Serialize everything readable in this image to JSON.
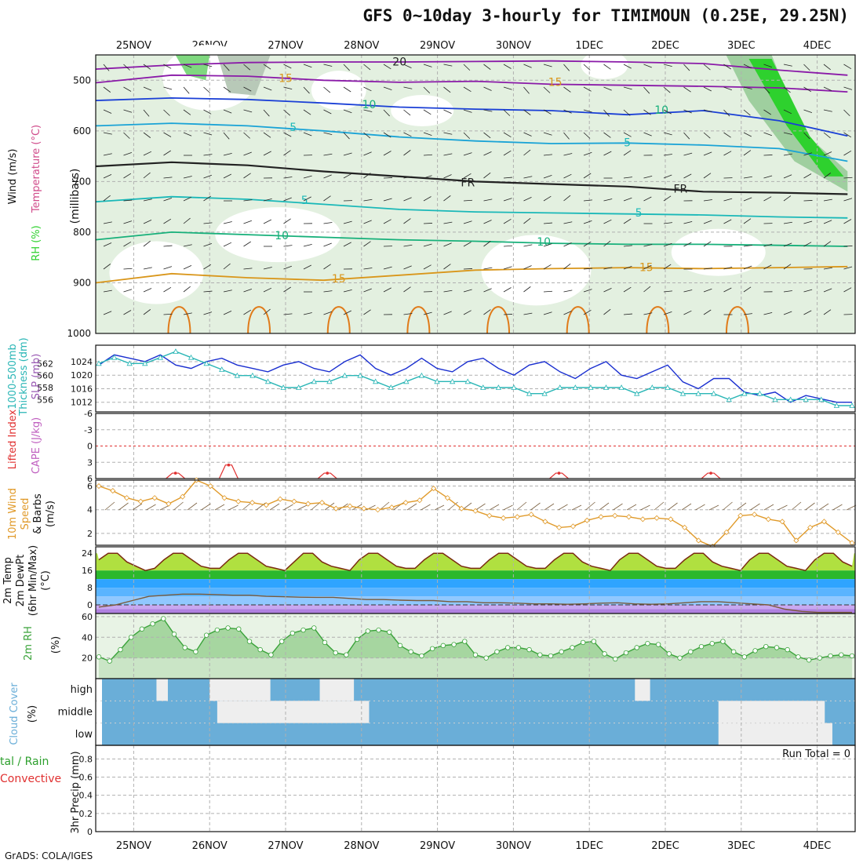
{
  "title": "GFS 0~10day 3-hourly for TIMIMOUN (0.25E, 29.25N)",
  "credit": "GrADS: COLA/IGES",
  "colors": {
    "rh_green": "#2ed12e",
    "grid": "#b0b0b0",
    "temp_purple": "#8a1aa8",
    "temp_blue": "#1a3fd6",
    "temp_cyan": "#1aa3d6",
    "temp_teal": "#1ab8b8",
    "temp_green": "#17b07a",
    "temp_orange": "#d9961a",
    "temp_darkorange": "#e07b1a",
    "slp": "#1a2fd0",
    "thickness": "#2ab6b6",
    "li": "#e03030",
    "wind": "#e09a2a",
    "rh2m": "#3aa33a",
    "cloud": "#6aaed8",
    "convective": "#e03030"
  },
  "chart_data": [
    {
      "type": "line",
      "panel": "upper-air cross section",
      "ylabel": "(millibars)",
      "side_labels": [
        "Wind (m/s)",
        "Temperature (°C)",
        "RH (%)"
      ],
      "date_labels": [
        "25NOV",
        "26NOV",
        "27NOV",
        "28NOV",
        "29NOV",
        "30NOV",
        "1DEC",
        "2DEC",
        "3DEC",
        "4DEC"
      ],
      "yticks": [
        500,
        600,
        700,
        800,
        900,
        1000
      ],
      "ylim": [
        1000,
        450
      ],
      "xlim": [
        0,
        10
      ],
      "x_of_dates": [
        0.5,
        1.5,
        2.5,
        3.5,
        4.5,
        5.5,
        6.5,
        7.5,
        8.5,
        9.5
      ],
      "isotherms": [
        {
          "name": "-20",
          "color": "#8a1aa8",
          "x": [
            0,
            1,
            2,
            3,
            4,
            5,
            6,
            7,
            8,
            9,
            9.9
          ],
          "y": [
            478,
            470,
            465,
            464,
            464,
            463,
            462,
            464,
            467,
            480,
            490
          ]
        },
        {
          "name": "-15",
          "color": "#8a1aa8",
          "x": [
            0,
            1,
            2,
            3,
            4,
            5,
            6,
            7,
            8,
            9,
            9.9
          ],
          "y": [
            505,
            490,
            492,
            500,
            504,
            502,
            508,
            510,
            512,
            515,
            523
          ]
        },
        {
          "name": "-10",
          "color": "#1a3fd6",
          "x": [
            0,
            1,
            2,
            3,
            4,
            5,
            6,
            7,
            8,
            9,
            9.9
          ],
          "y": [
            540,
            535,
            538,
            545,
            553,
            557,
            560,
            568,
            560,
            580,
            610
          ]
        },
        {
          "name": "-5",
          "color": "#1aa3d6",
          "x": [
            0,
            1,
            2,
            3,
            4,
            5,
            6,
            7,
            8,
            9,
            9.9
          ],
          "y": [
            590,
            585,
            590,
            600,
            612,
            620,
            625,
            624,
            628,
            635,
            660
          ]
        },
        {
          "name": "FR",
          "color": "#222222",
          "x": [
            0,
            1,
            2,
            3,
            4,
            5,
            6,
            7,
            8,
            9,
            9.9
          ],
          "y": [
            670,
            662,
            668,
            680,
            690,
            700,
            705,
            710,
            720,
            722,
            725
          ]
        },
        {
          "name": "5",
          "color": "#1ab8b8",
          "x": [
            0,
            1,
            2,
            3,
            4,
            5,
            6,
            7,
            8,
            9,
            9.9
          ],
          "y": [
            740,
            730,
            735,
            745,
            755,
            760,
            762,
            764,
            766,
            770,
            772
          ]
        },
        {
          "name": "10",
          "color": "#17b07a",
          "x": [
            0,
            1,
            2,
            3,
            4,
            5,
            6,
            7,
            8,
            9,
            9.9
          ],
          "y": [
            815,
            800,
            805,
            810,
            815,
            818,
            822,
            824,
            824,
            826,
            828
          ]
        },
        {
          "name": "15",
          "color": "#d9961a",
          "x": [
            0,
            1,
            2,
            3,
            4,
            5,
            6,
            7,
            8,
            9,
            9.9
          ],
          "y": [
            900,
            882,
            890,
            895,
            885,
            875,
            872,
            870,
            872,
            870,
            868
          ]
        }
      ],
      "isotherm_labels": [
        {
          "text": "20",
          "x": 4.0,
          "y": 465
        },
        {
          "text": "15",
          "x": 2.5,
          "y": 497
        },
        {
          "text": "15",
          "x": 6.05,
          "y": 505
        },
        {
          "text": "10",
          "x": 3.6,
          "y": 549
        },
        {
          "text": "10",
          "x": 7.45,
          "y": 560
        },
        {
          "text": "5",
          "x": 2.6,
          "y": 594
        },
        {
          "text": "5",
          "x": 7.0,
          "y": 624
        },
        {
          "text": "FR",
          "x": 4.9,
          "y": 703
        },
        {
          "text": "FR",
          "x": 7.7,
          "y": 716
        },
        {
          "text": "5",
          "x": 2.75,
          "y": 738
        },
        {
          "text": "5",
          "x": 7.15,
          "y": 763
        },
        {
          "text": "10",
          "x": 2.45,
          "y": 808
        },
        {
          "text": "10",
          "x": 5.9,
          "y": 820
        },
        {
          "text": "15",
          "x": 3.2,
          "y": 893
        },
        {
          "text": "15",
          "x": 7.25,
          "y": 871
        }
      ]
    },
    {
      "type": "line",
      "panel": "SLP and thickness",
      "ylabel": "SLP (mb)",
      "ylabel2": "1000-500mb thickness (dm)",
      "yticks_left": [
        556,
        558,
        560,
        562
      ],
      "yticks_right": [
        1012,
        1016,
        1020,
        1024
      ],
      "series": [
        {
          "name": "SLP",
          "values": [
            1023,
            1026,
            1025,
            1024,
            1026,
            1023,
            1022,
            1024,
            1025,
            1023,
            1022,
            1021,
            1023,
            1024,
            1022,
            1021,
            1024,
            1026,
            1022,
            1020,
            1022,
            1025,
            1022,
            1021,
            1024,
            1025,
            1022,
            1020,
            1023,
            1024,
            1021,
            1019,
            1022,
            1024,
            1020,
            1019,
            1021,
            1023,
            1018,
            1016,
            1019,
            1019,
            1015,
            1014,
            1015,
            1012,
            1014,
            1013,
            1012,
            1012
          ]
        },
        {
          "name": "Thickness",
          "values": [
            562,
            563,
            562,
            562,
            563,
            564,
            563,
            562,
            561,
            560,
            560,
            559,
            558,
            558,
            559,
            559,
            560,
            560,
            559,
            558,
            559,
            560,
            559,
            559,
            559,
            558,
            558,
            558,
            557,
            557,
            558,
            558,
            558,
            558,
            558,
            557,
            558,
            558,
            557,
            557,
            557,
            556,
            557,
            557,
            556,
            556,
            556,
            556,
            555,
            555
          ]
        }
      ]
    },
    {
      "type": "line",
      "panel": "Lifted Index and CAPE",
      "ylabel": "Lifted Index",
      "ylabel2": "CAPE (J/kg)",
      "yticks": [
        "-6",
        "-3",
        "0",
        "3",
        "6"
      ],
      "ylim": [
        -6,
        6
      ],
      "series": [
        {
          "name": "Lifted Index",
          "peaks": [
            {
              "x": 1.05,
              "y": 5.0
            },
            {
              "x": 1.75,
              "y": 3.5
            },
            {
              "x": 3.05,
              "y": 5.0
            },
            {
              "x": 6.1,
              "y": 5.0
            },
            {
              "x": 8.1,
              "y": 5.0
            }
          ]
        }
      ]
    },
    {
      "type": "line",
      "panel": "10m wind",
      "ylabel": "10m Wind Speed & Barbs (m/s)",
      "yticks": [
        2,
        4,
        6
      ],
      "ylim": [
        1,
        6.5
      ],
      "series": [
        {
          "name": "10m Wind",
          "values": [
            6.0,
            5.6,
            5.0,
            4.7,
            5.0,
            4.5,
            5.1,
            6.5,
            6.0,
            5.0,
            4.7,
            4.6,
            4.4,
            4.9,
            4.7,
            4.5,
            4.6,
            4.1,
            4.3,
            4.1,
            4.0,
            4.2,
            4.6,
            4.8,
            5.8,
            5.0,
            4.1,
            3.9,
            3.5,
            3.3,
            3.4,
            3.6,
            3.0,
            2.5,
            2.6,
            3.1,
            3.4,
            3.5,
            3.4,
            3.2,
            3.3,
            3.2,
            2.5,
            1.4,
            0.9,
            2.1,
            3.5,
            3.6,
            3.2,
            3.0,
            1.4,
            2.5,
            3.0,
            2.1,
            1.2
          ]
        }
      ]
    },
    {
      "type": "line",
      "panel": "2m temperature and dewpoint",
      "ylabel": "2m Temp 2m DewPt (6hr Min/Max) (°C)",
      "yticks": [
        0,
        8,
        16,
        24
      ],
      "ylim": [
        -4,
        27
      ],
      "series": [
        {
          "name": "2m Temp",
          "values": [
            21,
            24,
            24,
            20,
            18,
            16,
            17,
            21,
            24,
            24,
            21,
            18,
            17,
            17,
            21,
            24,
            24,
            21,
            18,
            17,
            16,
            20,
            24,
            24,
            20,
            18,
            17,
            16,
            21,
            24,
            24,
            21,
            18,
            17,
            17,
            21,
            24,
            24,
            21,
            18,
            17,
            17,
            21,
            24,
            24,
            21,
            18,
            17,
            17,
            21,
            24,
            24,
            20,
            18,
            17,
            16,
            21,
            24,
            24,
            21,
            18,
            17,
            17,
            21,
            24,
            24,
            20,
            18,
            17,
            16,
            21,
            24,
            24,
            21,
            18,
            17,
            16,
            21,
            24,
            24,
            20,
            18
          ]
        },
        {
          "name": "2m DewPt",
          "values": [
            -1,
            0,
            2,
            4,
            4.5,
            5,
            5,
            4.8,
            4.5,
            4.5,
            4,
            3.8,
            3.6,
            3.5,
            3.5,
            3,
            2.5,
            2.5,
            2.2,
            2,
            2,
            1.5,
            1.5,
            1,
            1,
            0.8,
            0.5,
            0.5,
            0.3,
            0.5,
            0.8,
            1,
            0.5,
            0.3,
            0.5,
            1,
            1.5,
            1.5,
            1,
            0.5,
            0,
            -2,
            -3,
            -3.5,
            -3.5,
            -3.5
          ]
        }
      ]
    },
    {
      "type": "area",
      "panel": "2m RH",
      "ylabel": "2m RH (%)",
      "yticks": [
        20,
        40,
        60
      ],
      "ylim": [
        0,
        63
      ],
      "series": [
        {
          "name": "2m RH",
          "values": [
            21,
            17,
            28,
            40,
            48,
            53,
            58,
            43,
            30,
            26,
            42,
            47,
            49,
            48,
            36,
            28,
            23,
            36,
            44,
            47,
            49,
            35,
            25,
            23,
            38,
            46,
            47,
            45,
            32,
            26,
            22,
            29,
            32,
            33,
            36,
            23,
            20,
            26,
            30,
            30,
            28,
            23,
            22,
            26,
            30,
            35,
            36,
            24,
            19,
            25,
            30,
            34,
            33,
            24,
            20,
            26,
            31,
            34,
            36,
            26,
            21,
            27,
            31,
            30,
            28,
            21,
            18,
            20,
            22,
            23,
            22
          ]
        }
      ]
    },
    {
      "type": "area",
      "panel": "cloud cover",
      "ylabel": "Cloud Cover (%)",
      "categories": [
        "high",
        "middle",
        "low"
      ]
    },
    {
      "type": "bar",
      "panel": "3hr precipitation",
      "ylabel": "3hr Precip (mm)",
      "legend": [
        "Total / Rain",
        "Convective"
      ],
      "annotation": "Run Total = 0",
      "yticks": [
        "0",
        "0.2",
        "0.4",
        "0.6",
        "0.8"
      ],
      "ylim": [
        0,
        0.95
      ],
      "values": []
    }
  ],
  "side_labels": {
    "p2": [
      "SLP (mb)",
      "1000-500mb",
      "Thickness (dm)"
    ],
    "p3_li": "Lifted Index",
    "p3_cape": "CAPE (J/kg)",
    "p4": [
      "10m Wind",
      "Speed",
      "& Barbs",
      "(m/s)"
    ],
    "p5": [
      "2m Temp",
      "2m DewPt",
      "(6hr Min/Max)",
      "(°C)"
    ],
    "p6": [
      "2m RH",
      "(%)"
    ],
    "p7": [
      "Cloud Cover",
      "(%)"
    ],
    "p8_total": "tal / Rain",
    "p8_conv": "Convective",
    "p8_axis": "3hr Precip (mm)",
    "p1": [
      "Wind (m/s)",
      "Temperature (°C)",
      "RH (%)",
      "(millibars)"
    ]
  }
}
